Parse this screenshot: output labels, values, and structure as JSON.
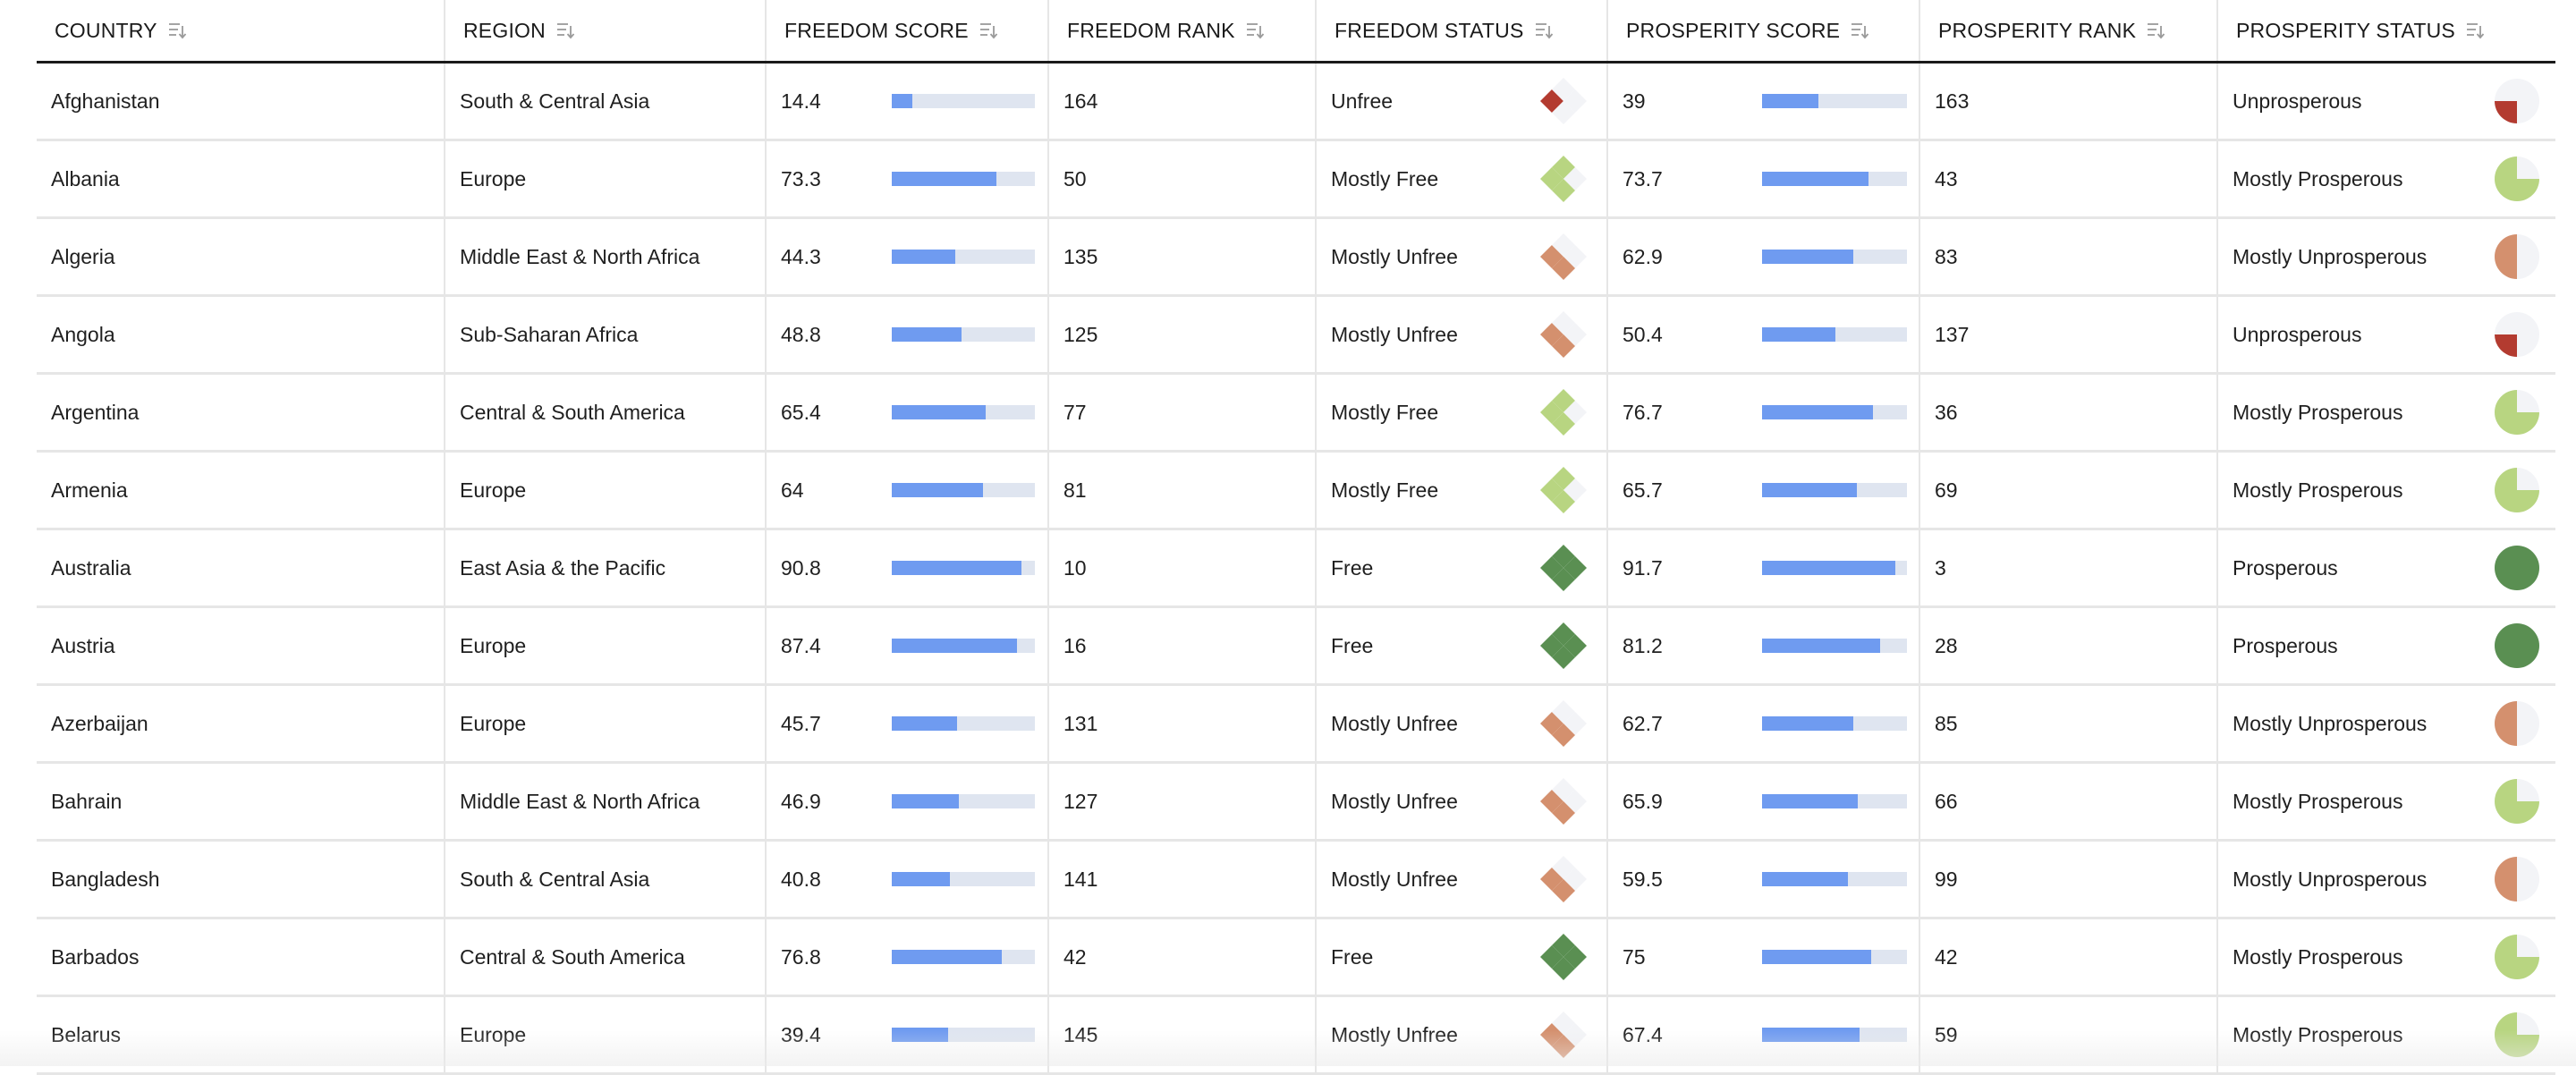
{
  "colors": {
    "bar_fill": "#6f9bf0",
    "bar_track": "#dfe5f0",
    "icon_empty": "#f3f4f7",
    "free": "#5a8f52",
    "mostly_free": "#b8d581",
    "mostly_unfree": "#d4906e",
    "unfree": "#b33b30"
  },
  "headers": [
    {
      "label": "COUNTRY"
    },
    {
      "label": "REGION"
    },
    {
      "label": "FREEDOM SCORE"
    },
    {
      "label": "FREEDOM RANK"
    },
    {
      "label": "FREEDOM STATUS"
    },
    {
      "label": "PROSPERITY SCORE"
    },
    {
      "label": "PROSPERITY RANK"
    },
    {
      "label": "PROSPERITY STATUS"
    }
  ],
  "rows": [
    {
      "country": "Afghanistan",
      "region": "South & Central Asia",
      "freedom_score": "14.4",
      "freedom_rank": "164",
      "freedom_status": "Unfree",
      "prosperity_score": "39",
      "prosperity_rank": "163",
      "prosperity_status": "Unprosperous"
    },
    {
      "country": "Albania",
      "region": "Europe",
      "freedom_score": "73.3",
      "freedom_rank": "50",
      "freedom_status": "Mostly Free",
      "prosperity_score": "73.7",
      "prosperity_rank": "43",
      "prosperity_status": "Mostly Prosperous"
    },
    {
      "country": "Algeria",
      "region": "Middle East & North Africa",
      "freedom_score": "44.3",
      "freedom_rank": "135",
      "freedom_status": "Mostly Unfree",
      "prosperity_score": "62.9",
      "prosperity_rank": "83",
      "prosperity_status": "Mostly Unprosperous"
    },
    {
      "country": "Angola",
      "region": "Sub-Saharan Africa",
      "freedom_score": "48.8",
      "freedom_rank": "125",
      "freedom_status": "Mostly Unfree",
      "prosperity_score": "50.4",
      "prosperity_rank": "137",
      "prosperity_status": "Unprosperous"
    },
    {
      "country": "Argentina",
      "region": "Central & South America",
      "freedom_score": "65.4",
      "freedom_rank": "77",
      "freedom_status": "Mostly Free",
      "prosperity_score": "76.7",
      "prosperity_rank": "36",
      "prosperity_status": "Mostly Prosperous"
    },
    {
      "country": "Armenia",
      "region": "Europe",
      "freedom_score": "64",
      "freedom_rank": "81",
      "freedom_status": "Mostly Free",
      "prosperity_score": "65.7",
      "prosperity_rank": "69",
      "prosperity_status": "Mostly Prosperous"
    },
    {
      "country": "Australia",
      "region": "East Asia & the Pacific",
      "freedom_score": "90.8",
      "freedom_rank": "10",
      "freedom_status": "Free",
      "prosperity_score": "91.7",
      "prosperity_rank": "3",
      "prosperity_status": "Prosperous"
    },
    {
      "country": "Austria",
      "region": "Europe",
      "freedom_score": "87.4",
      "freedom_rank": "16",
      "freedom_status": "Free",
      "prosperity_score": "81.2",
      "prosperity_rank": "28",
      "prosperity_status": "Prosperous"
    },
    {
      "country": "Azerbaijan",
      "region": "Europe",
      "freedom_score": "45.7",
      "freedom_rank": "131",
      "freedom_status": "Mostly Unfree",
      "prosperity_score": "62.7",
      "prosperity_rank": "85",
      "prosperity_status": "Mostly Unprosperous"
    },
    {
      "country": "Bahrain",
      "region": "Middle East & North Africa",
      "freedom_score": "46.9",
      "freedom_rank": "127",
      "freedom_status": "Mostly Unfree",
      "prosperity_score": "65.9",
      "prosperity_rank": "66",
      "prosperity_status": "Mostly Prosperous"
    },
    {
      "country": "Bangladesh",
      "region": "South & Central Asia",
      "freedom_score": "40.8",
      "freedom_rank": "141",
      "freedom_status": "Mostly Unfree",
      "prosperity_score": "59.5",
      "prosperity_rank": "99",
      "prosperity_status": "Mostly Unprosperous"
    },
    {
      "country": "Barbados",
      "region": "Central & South America",
      "freedom_score": "76.8",
      "freedom_rank": "42",
      "freedom_status": "Free",
      "prosperity_score": "75",
      "prosperity_rank": "42",
      "prosperity_status": "Mostly Prosperous"
    },
    {
      "country": "Belarus",
      "region": "Europe",
      "freedom_score": "39.4",
      "freedom_rank": "145",
      "freedom_status": "Mostly Unfree",
      "prosperity_score": "67.4",
      "prosperity_rank": "59",
      "prosperity_status": "Mostly Prosperous"
    }
  ]
}
